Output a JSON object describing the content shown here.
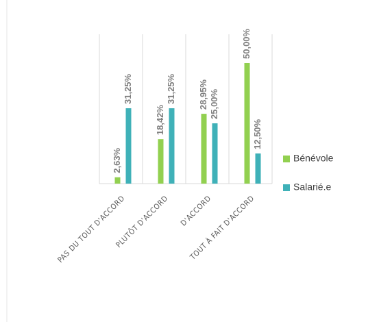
{
  "chart_data": {
    "type": "bar",
    "categories": [
      "PAS DU TOUT D'ACCORD",
      "PLUTÔT D'ACCORD",
      "D'ACCORD",
      "TOUT À FAIT D'ACCORD"
    ],
    "series": [
      {
        "name": "Bénévole",
        "color": "#92d050",
        "values": [
          2.63,
          18.42,
          28.95,
          50.0
        ],
        "value_labels": [
          "2,63%",
          "18,42%",
          "28,95%",
          "50,00%"
        ]
      },
      {
        "name": "Salarié.e",
        "color": "#3fb1b8",
        "values": [
          31.25,
          31.25,
          25.0,
          12.5
        ],
        "value_labels": [
          "31,25%",
          "31,25%",
          "25,00%",
          "12,50%"
        ]
      }
    ],
    "grid": true,
    "legend": "right"
  }
}
